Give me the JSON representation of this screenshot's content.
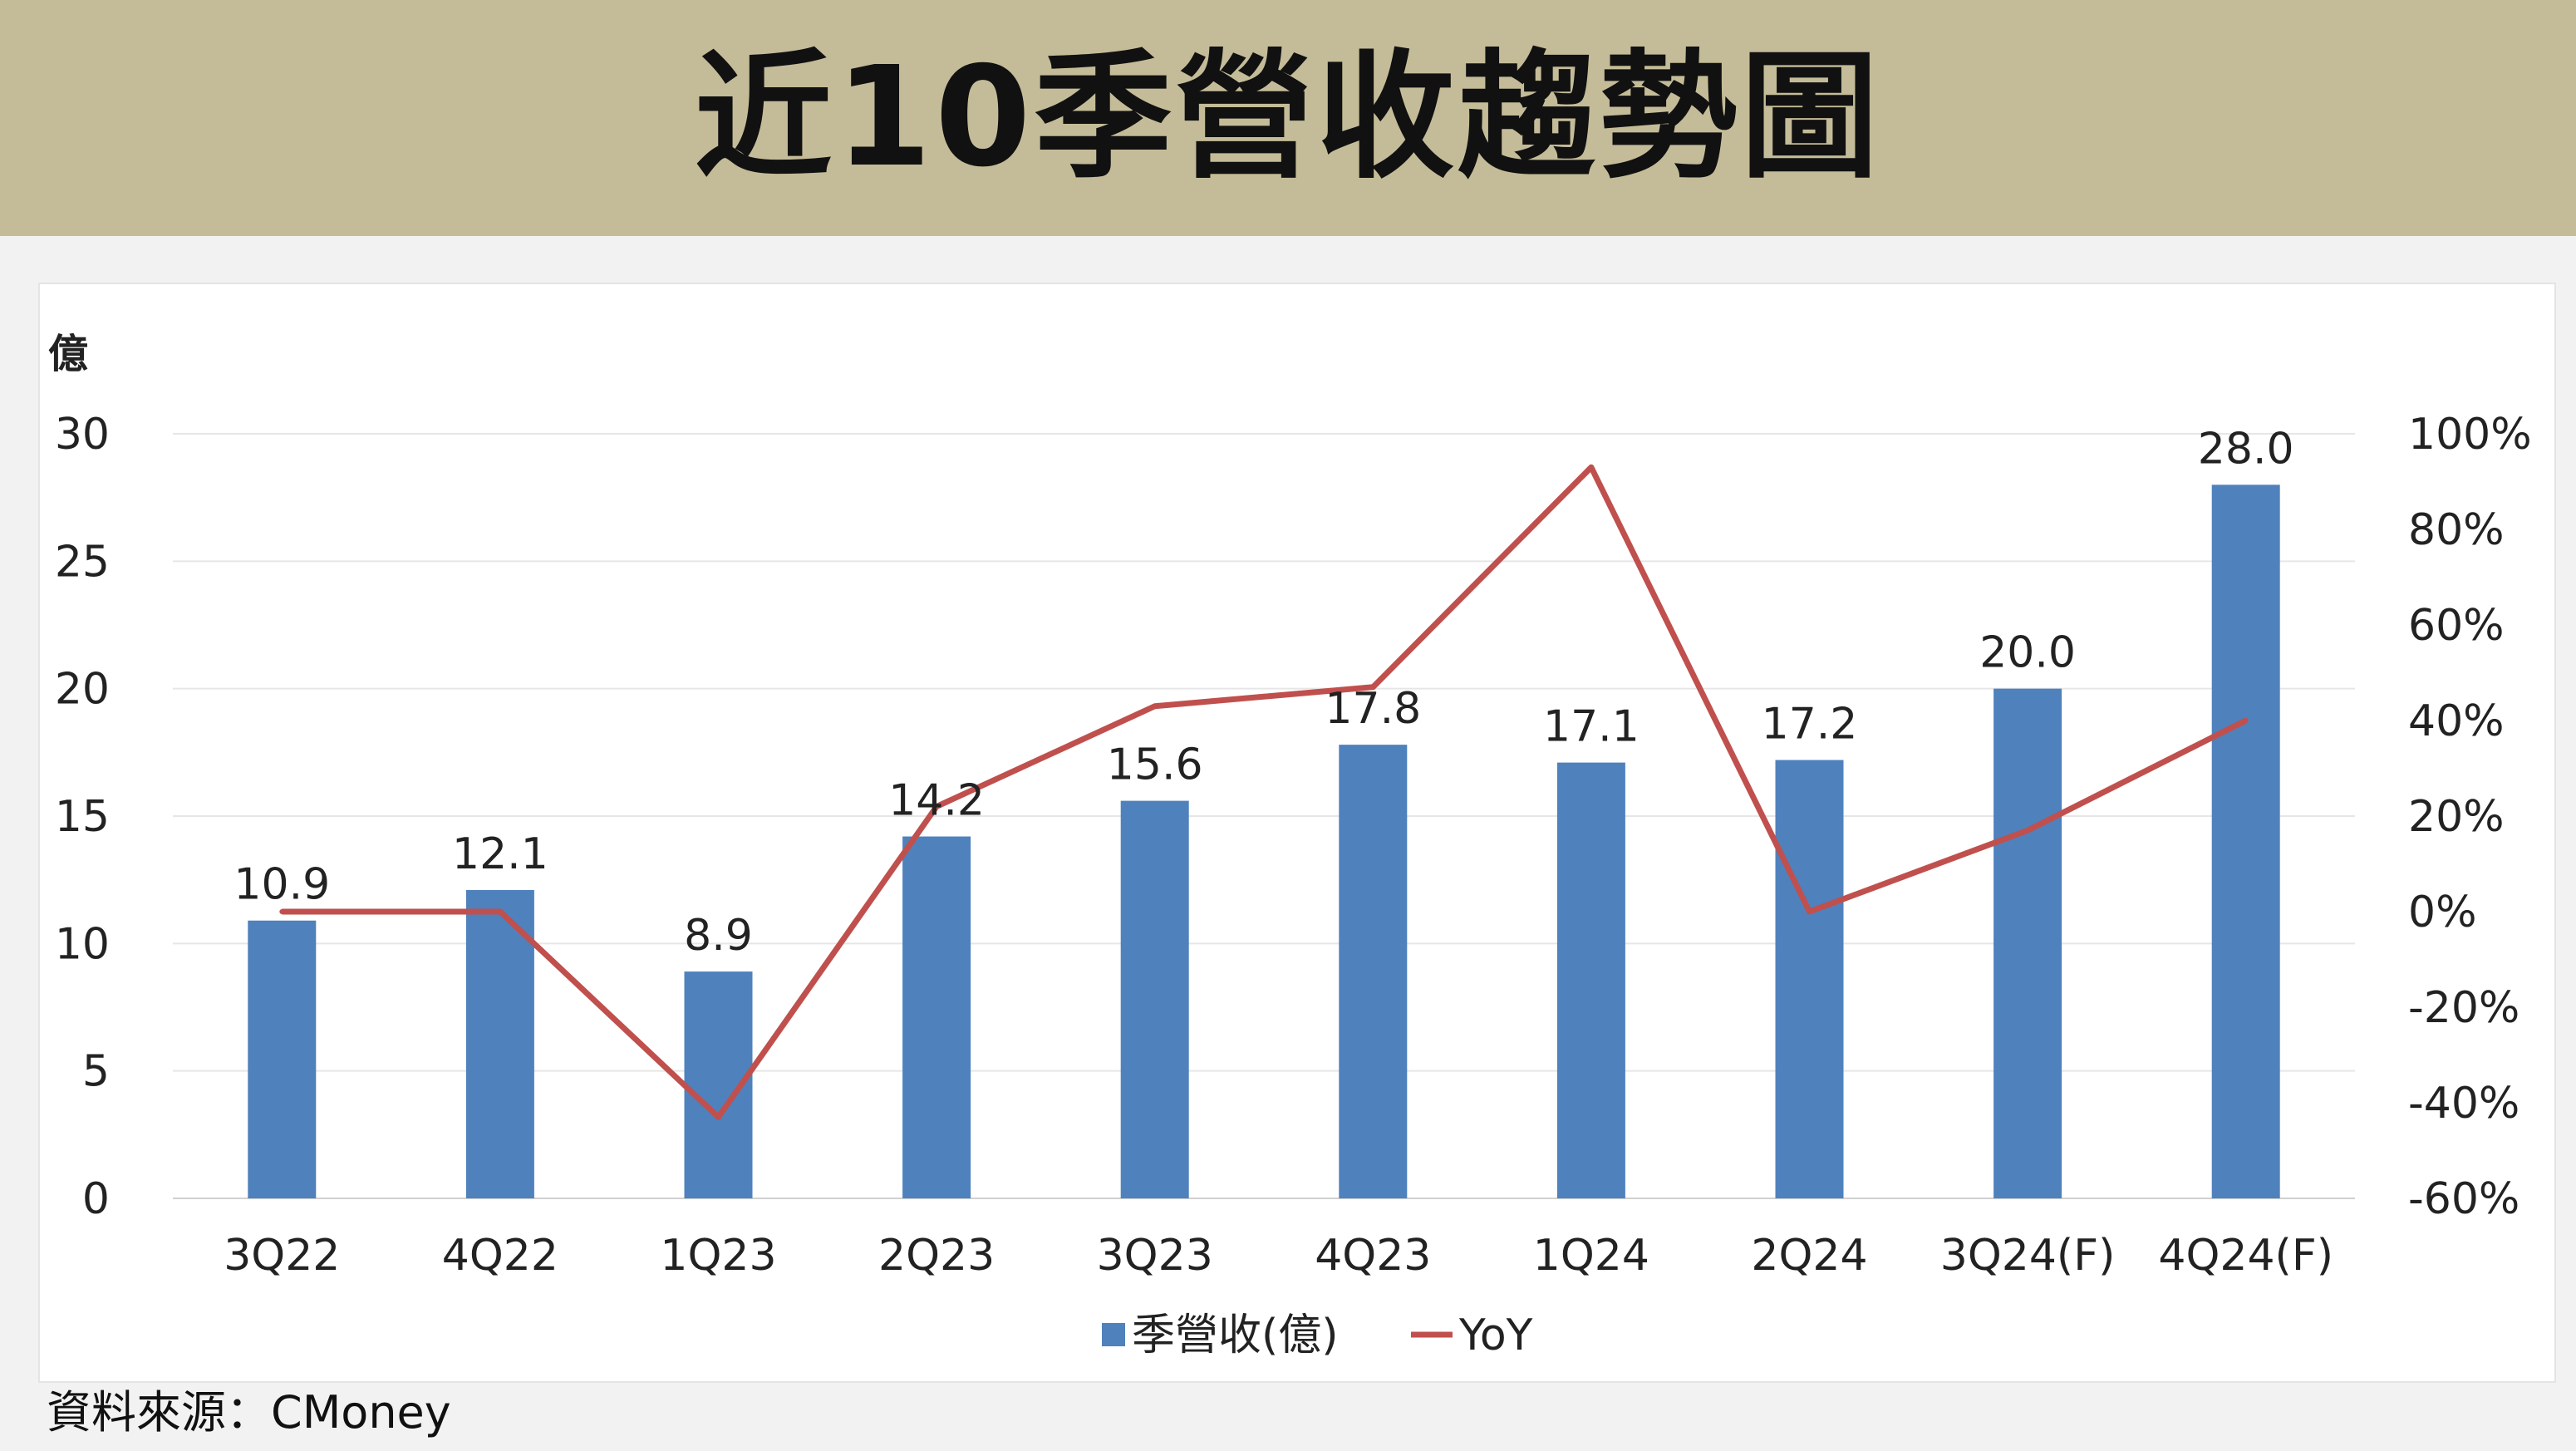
{
  "header": {
    "title": "近10季營收趨勢圖"
  },
  "source": {
    "text": "資料來源：CMoney"
  },
  "colors": {
    "bar": "#4f81bd",
    "line": "#c0504d",
    "banner": "#c4bc98"
  },
  "chart_data": {
    "type": "bar",
    "title": "",
    "ylabel": "億",
    "categories": [
      "3Q22",
      "4Q22",
      "1Q23",
      "2Q23",
      "3Q23",
      "4Q23",
      "1Q24",
      "2Q24",
      "3Q24(F)",
      "4Q24(F)"
    ],
    "ylim": [
      0,
      30
    ],
    "yticks": [
      "0",
      "5",
      "10",
      "15",
      "20",
      "25",
      "30"
    ],
    "y2lim": [
      -60,
      100
    ],
    "y2ticks": [
      "-60%",
      "-40%",
      "-20%",
      "0%",
      "20%",
      "40%",
      "60%",
      "80%",
      "100%"
    ],
    "series": [
      {
        "name": "季營收(億)",
        "type": "bar",
        "values": [
          10.9,
          12.1,
          8.9,
          14.2,
          15.6,
          17.8,
          17.1,
          17.2,
          20.0,
          28.0
        ],
        "labels": [
          "10.9",
          "12.1",
          "8.9",
          "14.2",
          "15.6",
          "17.8",
          "17.1",
          "17.2",
          "20.0",
          "28.0"
        ]
      },
      {
        "name": "YoY",
        "type": "line",
        "axis": "right",
        "values": [
          0,
          0,
          -43,
          22,
          43,
          47,
          93,
          0,
          17,
          40
        ]
      }
    ],
    "grid": true,
    "legend": "bottom"
  }
}
